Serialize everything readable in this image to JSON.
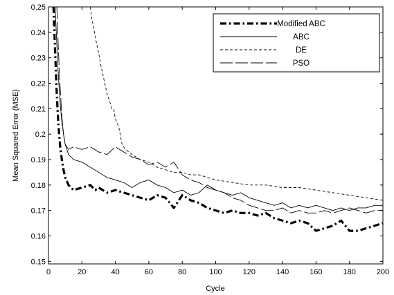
{
  "chart_data": {
    "type": "line",
    "title": "",
    "xlabel": "Cycle",
    "ylabel": "Mean Squared Error (MSE)",
    "xlim": [
      0,
      200
    ],
    "ylim": [
      0.149,
      0.25
    ],
    "xticks": [
      0,
      20,
      40,
      60,
      80,
      100,
      120,
      140,
      160,
      180,
      200
    ],
    "yticks": [
      0.15,
      0.16,
      0.17,
      0.18,
      0.19,
      0.2,
      0.21,
      0.22,
      0.23,
      0.24,
      0.25
    ],
    "grid": false,
    "legend_position": "top-right",
    "series": [
      {
        "name": "Modified ABC",
        "style": "dashdot-thick",
        "points": [
          [
            3,
            0.25
          ],
          [
            4,
            0.232
          ],
          [
            5,
            0.215
          ],
          [
            6,
            0.203
          ],
          [
            7,
            0.195
          ],
          [
            8,
            0.19
          ],
          [
            9,
            0.186
          ],
          [
            10,
            0.183
          ],
          [
            12,
            0.18
          ],
          [
            15,
            0.178
          ],
          [
            20,
            0.179
          ],
          [
            25,
            0.18
          ],
          [
            28,
            0.178
          ],
          [
            30,
            0.179
          ],
          [
            35,
            0.177
          ],
          [
            40,
            0.178
          ],
          [
            45,
            0.177
          ],
          [
            50,
            0.176
          ],
          [
            55,
            0.175
          ],
          [
            60,
            0.174
          ],
          [
            65,
            0.176
          ],
          [
            70,
            0.175
          ],
          [
            75,
            0.171
          ],
          [
            80,
            0.176
          ],
          [
            85,
            0.174
          ],
          [
            90,
            0.173
          ],
          [
            95,
            0.171
          ],
          [
            100,
            0.17
          ],
          [
            105,
            0.169
          ],
          [
            110,
            0.17
          ],
          [
            115,
            0.169
          ],
          [
            120,
            0.169
          ],
          [
            125,
            0.168
          ],
          [
            130,
            0.169
          ],
          [
            135,
            0.167
          ],
          [
            140,
            0.166
          ],
          [
            145,
            0.165
          ],
          [
            150,
            0.166
          ],
          [
            155,
            0.165
          ],
          [
            160,
            0.162
          ],
          [
            165,
            0.163
          ],
          [
            170,
            0.164
          ],
          [
            175,
            0.166
          ],
          [
            180,
            0.162
          ],
          [
            185,
            0.162
          ],
          [
            190,
            0.163
          ],
          [
            195,
            0.164
          ],
          [
            200,
            0.165
          ]
        ]
      },
      {
        "name": "ABC",
        "style": "solid",
        "points": [
          [
            4,
            0.25
          ],
          [
            5,
            0.235
          ],
          [
            6,
            0.222
          ],
          [
            7,
            0.212
          ],
          [
            8,
            0.205
          ],
          [
            9,
            0.2
          ],
          [
            10,
            0.196
          ],
          [
            12,
            0.192
          ],
          [
            15,
            0.19
          ],
          [
            20,
            0.189
          ],
          [
            25,
            0.187
          ],
          [
            30,
            0.185
          ],
          [
            35,
            0.183
          ],
          [
            40,
            0.182
          ],
          [
            45,
            0.181
          ],
          [
            50,
            0.179
          ],
          [
            55,
            0.181
          ],
          [
            60,
            0.182
          ],
          [
            65,
            0.18
          ],
          [
            70,
            0.179
          ],
          [
            75,
            0.177
          ],
          [
            80,
            0.178
          ],
          [
            85,
            0.176
          ],
          [
            90,
            0.177
          ],
          [
            95,
            0.18
          ],
          [
            100,
            0.178
          ],
          [
            105,
            0.177
          ],
          [
            110,
            0.176
          ],
          [
            115,
            0.177
          ],
          [
            120,
            0.175
          ],
          [
            125,
            0.174
          ],
          [
            130,
            0.173
          ],
          [
            135,
            0.172
          ],
          [
            140,
            0.173
          ],
          [
            145,
            0.171
          ],
          [
            150,
            0.172
          ],
          [
            155,
            0.171
          ],
          [
            160,
            0.172
          ],
          [
            165,
            0.171
          ],
          [
            170,
            0.17
          ],
          [
            175,
            0.171
          ],
          [
            180,
            0.17
          ],
          [
            185,
            0.171
          ],
          [
            190,
            0.171
          ],
          [
            195,
            0.172
          ],
          [
            200,
            0.172
          ]
        ]
      },
      {
        "name": "DE",
        "style": "dashed",
        "points": [
          [
            25,
            0.25
          ],
          [
            26,
            0.245
          ],
          [
            27,
            0.242
          ],
          [
            28,
            0.238
          ],
          [
            29,
            0.235
          ],
          [
            30,
            0.232
          ],
          [
            31,
            0.228
          ],
          [
            32,
            0.225
          ],
          [
            33,
            0.222
          ],
          [
            34,
            0.219
          ],
          [
            35,
            0.216
          ],
          [
            36,
            0.214
          ],
          [
            37,
            0.212
          ],
          [
            38,
            0.21
          ],
          [
            39,
            0.21
          ],
          [
            40,
            0.206
          ],
          [
            42,
            0.203
          ],
          [
            44,
            0.196
          ],
          [
            46,
            0.194
          ],
          [
            50,
            0.192
          ],
          [
            55,
            0.19
          ],
          [
            60,
            0.189
          ],
          [
            65,
            0.187
          ],
          [
            70,
            0.186
          ],
          [
            75,
            0.185
          ],
          [
            80,
            0.185
          ],
          [
            85,
            0.184
          ],
          [
            90,
            0.184
          ],
          [
            95,
            0.183
          ],
          [
            100,
            0.182
          ],
          [
            110,
            0.181
          ],
          [
            120,
            0.18
          ],
          [
            130,
            0.18
          ],
          [
            140,
            0.179
          ],
          [
            150,
            0.179
          ],
          [
            160,
            0.178
          ],
          [
            170,
            0.177
          ],
          [
            180,
            0.176
          ],
          [
            190,
            0.175
          ],
          [
            200,
            0.174
          ]
        ]
      },
      {
        "name": "PSO",
        "style": "longdash",
        "points": [
          [
            5,
            0.25
          ],
          [
            6,
            0.232
          ],
          [
            7,
            0.218
          ],
          [
            8,
            0.207
          ],
          [
            9,
            0.2
          ],
          [
            10,
            0.196
          ],
          [
            12,
            0.194
          ],
          [
            15,
            0.195
          ],
          [
            20,
            0.194
          ],
          [
            25,
            0.195
          ],
          [
            30,
            0.193
          ],
          [
            35,
            0.192
          ],
          [
            40,
            0.195
          ],
          [
            45,
            0.193
          ],
          [
            50,
            0.191
          ],
          [
            55,
            0.19
          ],
          [
            60,
            0.188
          ],
          [
            65,
            0.189
          ],
          [
            70,
            0.187
          ],
          [
            75,
            0.189
          ],
          [
            80,
            0.184
          ],
          [
            85,
            0.182
          ],
          [
            90,
            0.181
          ],
          [
            95,
            0.179
          ],
          [
            100,
            0.178
          ],
          [
            105,
            0.177
          ],
          [
            110,
            0.175
          ],
          [
            115,
            0.174
          ],
          [
            120,
            0.172
          ],
          [
            125,
            0.171
          ],
          [
            130,
            0.17
          ],
          [
            135,
            0.17
          ],
          [
            140,
            0.171
          ],
          [
            145,
            0.169
          ],
          [
            150,
            0.17
          ],
          [
            155,
            0.169
          ],
          [
            160,
            0.169
          ],
          [
            165,
            0.17
          ],
          [
            170,
            0.169
          ],
          [
            175,
            0.17
          ],
          [
            180,
            0.171
          ],
          [
            185,
            0.17
          ],
          [
            190,
            0.169
          ],
          [
            195,
            0.17
          ],
          [
            200,
            0.17
          ]
        ]
      }
    ]
  }
}
